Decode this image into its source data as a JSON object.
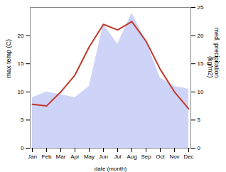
{
  "chart_data": {
    "type": "line",
    "categories": [
      "Jan",
      "Feb",
      "Mar",
      "Apr",
      "May",
      "Jun",
      "Jul",
      "Aug",
      "Sep",
      "Oct",
      "Nov",
      "Dec"
    ],
    "xlabel": "date (month)",
    "ylabel": "max temp (C)",
    "y2label": "med. precipitation\n(kg/m2)",
    "ylim": [
      0,
      25
    ],
    "yticks": [
      0,
      5,
      10,
      15,
      20
    ],
    "y2lim": [
      0,
      25
    ],
    "y2ticks": [
      0,
      5,
      10,
      15,
      20,
      25
    ],
    "series": [
      {
        "type": "area",
        "axis": "y2",
        "color": "#b3bcf5",
        "values": [
          9.0,
          10.0,
          9.5,
          9.0,
          11.0,
          22.0,
          18.5,
          24.0,
          19.0,
          12.5,
          11.0,
          10.5
        ]
      },
      {
        "type": "line",
        "color": "#c0392b",
        "values": [
          7.8,
          7.5,
          10.0,
          13.0,
          18.0,
          22.0,
          21.0,
          22.5,
          19.0,
          14.0,
          10.0,
          7.0
        ]
      }
    ]
  }
}
